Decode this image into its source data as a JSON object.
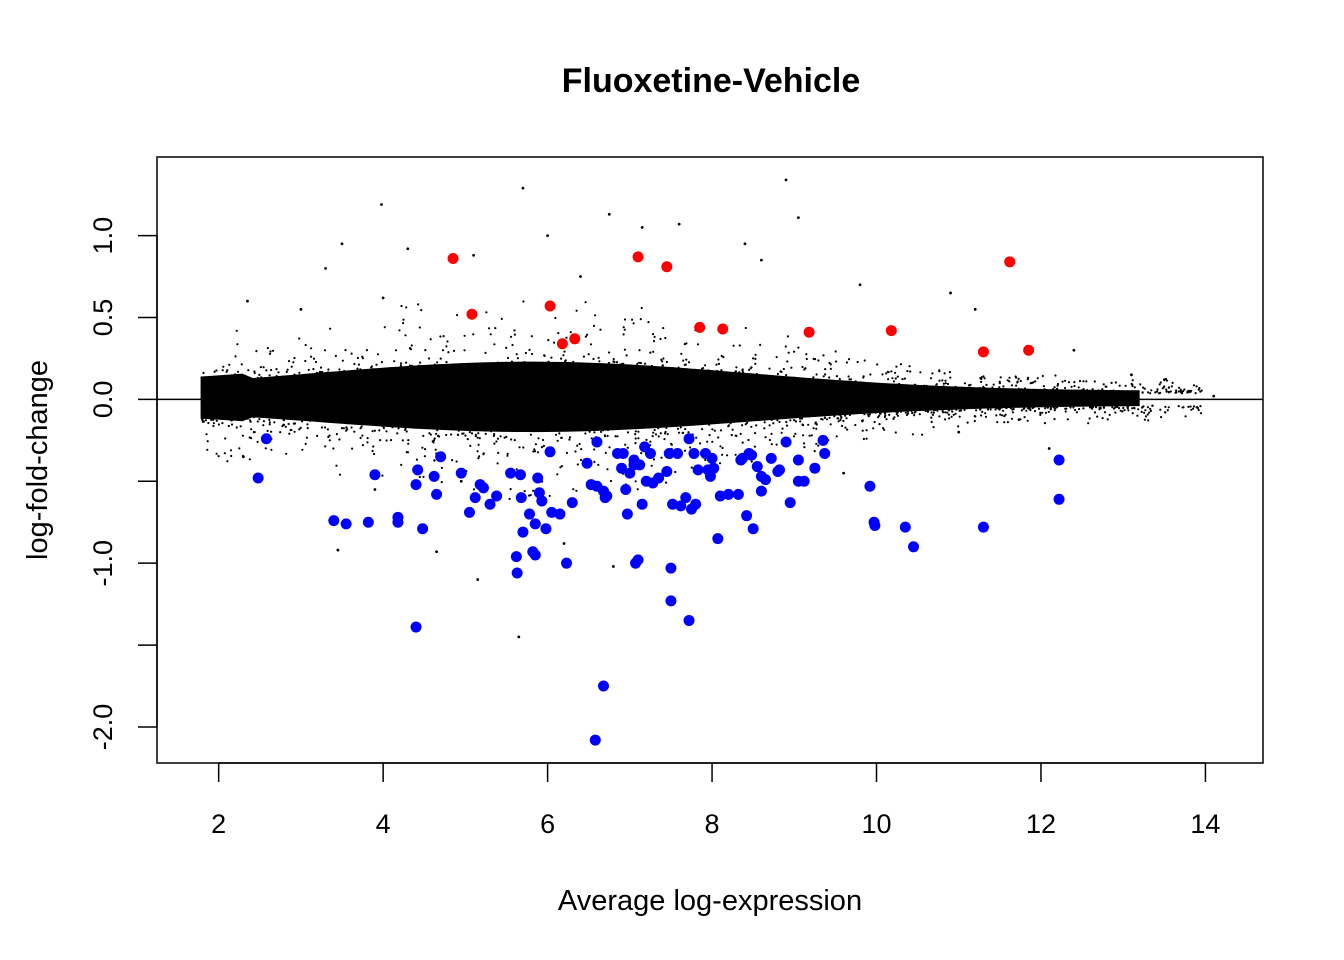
{
  "chart_data": {
    "type": "scatter",
    "title": "Fluoxetine-Vehicle",
    "xlabel": "Average log-expression",
    "ylabel": "log-fold-change",
    "xlim": [
      1.25,
      14.7
    ],
    "ylim": [
      -2.22,
      1.48
    ],
    "xticks": [
      2,
      4,
      6,
      8,
      10,
      12,
      14
    ],
    "xtick_labels": [
      "2",
      "4",
      "6",
      "8",
      "10",
      "12",
      "14"
    ],
    "yticks": [
      1.0,
      0.5,
      0.0,
      -1.0,
      -2.0
    ],
    "ytick_labels": [
      "1.0",
      "0.5",
      "0.0",
      "-1.0",
      "-2.0"
    ],
    "yticks_unlabeled": [
      -0.5,
      -1.5
    ],
    "reference_line_y": 0,
    "grid": false,
    "legend": "none",
    "colors": {
      "background_points": "#000000",
      "up": "#ff0000",
      "down": "#0000ff"
    },
    "series": [
      {
        "color": "#000000",
        "marker": "dot",
        "values_description_note": null,
        "points": [
          [
            5.7,
            1.29
          ],
          [
            8.9,
            1.34
          ],
          [
            3.98,
            1.19
          ],
          [
            6.75,
            1.13
          ],
          [
            9.05,
            1.11
          ],
          [
            7.15,
            1.05
          ],
          [
            7.6,
            1.07
          ],
          [
            3.5,
            0.95
          ],
          [
            4.3,
            0.92
          ],
          [
            6.0,
            1.0
          ],
          [
            8.4,
            0.95
          ],
          [
            5.1,
            0.88
          ],
          [
            3.3,
            0.8
          ],
          [
            8.6,
            0.85
          ],
          [
            2.35,
            0.6
          ],
          [
            3.0,
            0.55
          ],
          [
            4.0,
            0.62
          ],
          [
            6.4,
            0.75
          ],
          [
            9.8,
            0.7
          ],
          [
            10.9,
            0.65
          ],
          [
            11.2,
            0.55
          ],
          [
            12.4,
            0.3
          ],
          [
            13.1,
            0.15
          ],
          [
            13.5,
            0.12
          ],
          [
            13.8,
            0.05
          ],
          [
            14.1,
            0.02
          ],
          [
            3.45,
            -0.92
          ],
          [
            5.15,
            -1.1
          ],
          [
            5.65,
            -1.45
          ],
          [
            4.65,
            -0.93
          ],
          [
            6.8,
            -1.02
          ],
          [
            7.7,
            -0.62
          ],
          [
            2.3,
            -0.35
          ],
          [
            9.6,
            -0.45
          ],
          [
            11.0,
            -0.2
          ],
          [
            3.9,
            -0.55
          ],
          [
            4.95,
            -0.5
          ],
          [
            8.3,
            -0.6
          ],
          [
            6.2,
            -0.88
          ],
          [
            12.1,
            -0.3
          ]
        ]
      },
      {
        "name": "",
        "color": "#ff0000",
        "marker": "filled-circle",
        "points": [
          [
            4.85,
            0.86
          ],
          [
            7.1,
            0.87
          ],
          [
            7.45,
            0.81
          ],
          [
            11.62,
            0.84
          ],
          [
            5.08,
            0.52
          ],
          [
            6.03,
            0.57
          ],
          [
            6.18,
            0.34
          ],
          [
            6.33,
            0.37
          ],
          [
            7.85,
            0.44
          ],
          [
            8.13,
            0.43
          ],
          [
            9.18,
            0.41
          ],
          [
            10.18,
            0.42
          ],
          [
            11.3,
            0.29
          ],
          [
            11.85,
            0.3
          ]
        ]
      },
      {
        "name": "",
        "color": "#0000ff",
        "marker": "filled-circle",
        "points": [
          [
            2.48,
            -0.48
          ],
          [
            2.58,
            -0.24
          ],
          [
            3.4,
            -0.74
          ],
          [
            3.55,
            -0.76
          ],
          [
            3.82,
            -0.75
          ],
          [
            3.9,
            -0.46
          ],
          [
            4.18,
            -0.72
          ],
          [
            4.18,
            -0.75
          ],
          [
            4.4,
            -0.52
          ],
          [
            4.42,
            -0.43
          ],
          [
            4.48,
            -0.79
          ],
          [
            4.62,
            -0.47
          ],
          [
            4.65,
            -0.58
          ],
          [
            4.7,
            -0.35
          ],
          [
            4.4,
            -1.39
          ],
          [
            4.95,
            -0.45
          ],
          [
            5.05,
            -0.69
          ],
          [
            5.12,
            -0.6
          ],
          [
            5.18,
            -0.52
          ],
          [
            5.22,
            -0.54
          ],
          [
            5.3,
            -0.64
          ],
          [
            5.38,
            -0.59
          ],
          [
            5.55,
            -0.45
          ],
          [
            5.62,
            -0.96
          ],
          [
            5.63,
            -1.06
          ],
          [
            5.67,
            -0.46
          ],
          [
            5.68,
            -0.6
          ],
          [
            5.7,
            -0.81
          ],
          [
            5.78,
            -0.7
          ],
          [
            5.82,
            -0.93
          ],
          [
            5.85,
            -0.95
          ],
          [
            5.85,
            -0.76
          ],
          [
            5.88,
            -0.48
          ],
          [
            5.9,
            -0.57
          ],
          [
            5.93,
            -0.62
          ],
          [
            5.98,
            -0.79
          ],
          [
            6.03,
            -0.32
          ],
          [
            6.05,
            -0.69
          ],
          [
            6.15,
            -0.7
          ],
          [
            6.23,
            -1.0
          ],
          [
            6.3,
            -0.63
          ],
          [
            6.48,
            -0.39
          ],
          [
            6.53,
            -0.52
          ],
          [
            6.6,
            -0.26
          ],
          [
            6.6,
            -0.53
          ],
          [
            6.58,
            -2.08
          ],
          [
            6.68,
            -1.75
          ],
          [
            6.68,
            -0.56
          ],
          [
            6.7,
            -0.6
          ],
          [
            6.72,
            -0.59
          ],
          [
            6.85,
            -0.33
          ],
          [
            6.9,
            -0.42
          ],
          [
            6.92,
            -0.33
          ],
          [
            6.95,
            -0.55
          ],
          [
            6.97,
            -0.7
          ],
          [
            7.0,
            -0.45
          ],
          [
            7.05,
            -0.37
          ],
          [
            7.05,
            -0.4
          ],
          [
            7.07,
            -1.0
          ],
          [
            7.1,
            -0.98
          ],
          [
            7.12,
            -0.4
          ],
          [
            7.15,
            -0.64
          ],
          [
            7.18,
            -0.29
          ],
          [
            7.2,
            -0.5
          ],
          [
            7.25,
            -0.33
          ],
          [
            7.28,
            -0.51
          ],
          [
            7.35,
            -0.48
          ],
          [
            7.45,
            -0.44
          ],
          [
            7.48,
            -0.33
          ],
          [
            7.5,
            -1.03
          ],
          [
            7.5,
            -1.23
          ],
          [
            7.52,
            -0.64
          ],
          [
            7.58,
            -0.33
          ],
          [
            7.62,
            -0.65
          ],
          [
            7.68,
            -0.6
          ],
          [
            7.72,
            -1.35
          ],
          [
            7.72,
            -0.24
          ],
          [
            7.75,
            -0.67
          ],
          [
            7.78,
            -0.33
          ],
          [
            7.8,
            -0.64
          ],
          [
            7.83,
            -0.43
          ],
          [
            7.92,
            -0.33
          ],
          [
            7.95,
            -0.43
          ],
          [
            7.98,
            -0.47
          ],
          [
            8.0,
            -0.36
          ],
          [
            8.02,
            -0.42
          ],
          [
            8.07,
            -0.85
          ],
          [
            8.1,
            -0.59
          ],
          [
            8.2,
            -0.58
          ],
          [
            8.32,
            -0.58
          ],
          [
            8.35,
            -0.37
          ],
          [
            8.37,
            -0.36
          ],
          [
            8.42,
            -0.71
          ],
          [
            8.45,
            -0.33
          ],
          [
            8.48,
            -0.34
          ],
          [
            8.5,
            -0.79
          ],
          [
            8.55,
            -0.41
          ],
          [
            8.6,
            -0.47
          ],
          [
            8.6,
            -0.56
          ],
          [
            8.65,
            -0.49
          ],
          [
            8.72,
            -0.36
          ],
          [
            8.8,
            -0.44
          ],
          [
            8.82,
            -0.43
          ],
          [
            8.9,
            -0.26
          ],
          [
            8.95,
            -0.63
          ],
          [
            9.05,
            -0.37
          ],
          [
            9.05,
            -0.5
          ],
          [
            9.12,
            -0.5
          ],
          [
            9.25,
            -0.42
          ],
          [
            9.35,
            -0.25
          ],
          [
            9.37,
            -0.33
          ],
          [
            9.92,
            -0.53
          ],
          [
            9.97,
            -0.75
          ],
          [
            9.98,
            -0.77
          ],
          [
            10.35,
            -0.78
          ],
          [
            10.45,
            -0.9
          ],
          [
            11.3,
            -0.78
          ],
          [
            12.22,
            -0.37
          ],
          [
            12.22,
            -0.61
          ]
        ]
      }
    ]
  }
}
